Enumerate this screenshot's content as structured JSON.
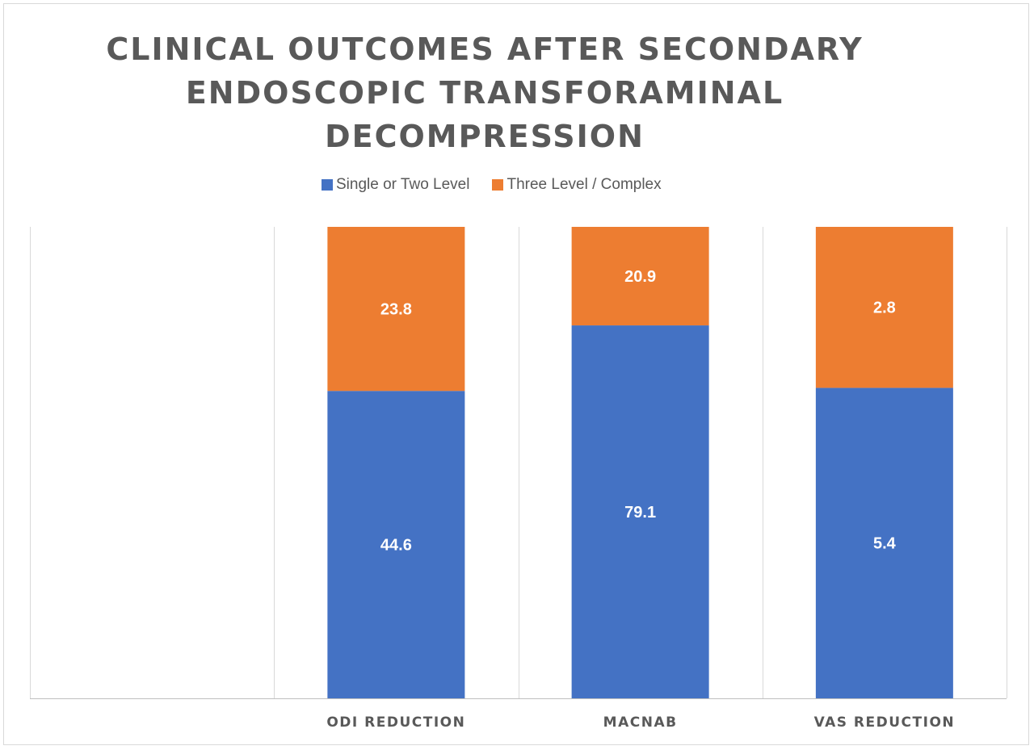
{
  "chart_data": {
    "type": "bar",
    "stacked": true,
    "title": "CLINICAL OUTCOMES AFTER SECONDARY ENDOSCOPIC TRANSFORAMINAL DECOMPRESSION",
    "title_lines": [
      "CLINICAL OUTCOMES AFTER SECONDARY",
      "ENDOSCOPIC TRANSFORAMINAL",
      "DECOMPRESSION"
    ],
    "categories": [
      "",
      "ODI REDUCTION",
      "MACNAB",
      "VAS REDUCTION"
    ],
    "series": [
      {
        "name": "Single or Two Level",
        "color": "#4472C4",
        "values": [
          null,
          44.6,
          79.1,
          5.4
        ],
        "labels": [
          "",
          "44.6",
          "79.1",
          "5.4"
        ]
      },
      {
        "name": "Three Level / Complex",
        "color": "#ED7D31",
        "values": [
          null,
          23.8,
          20.9,
          2.8
        ],
        "labels": [
          "",
          "23.8",
          "20.9",
          "2.8"
        ]
      }
    ],
    "stack_mode": "percent",
    "ylim": [
      0,
      100
    ],
    "grid": "vertical category separators",
    "legend_position": "top",
    "xlabel": "",
    "ylabel": ""
  }
}
